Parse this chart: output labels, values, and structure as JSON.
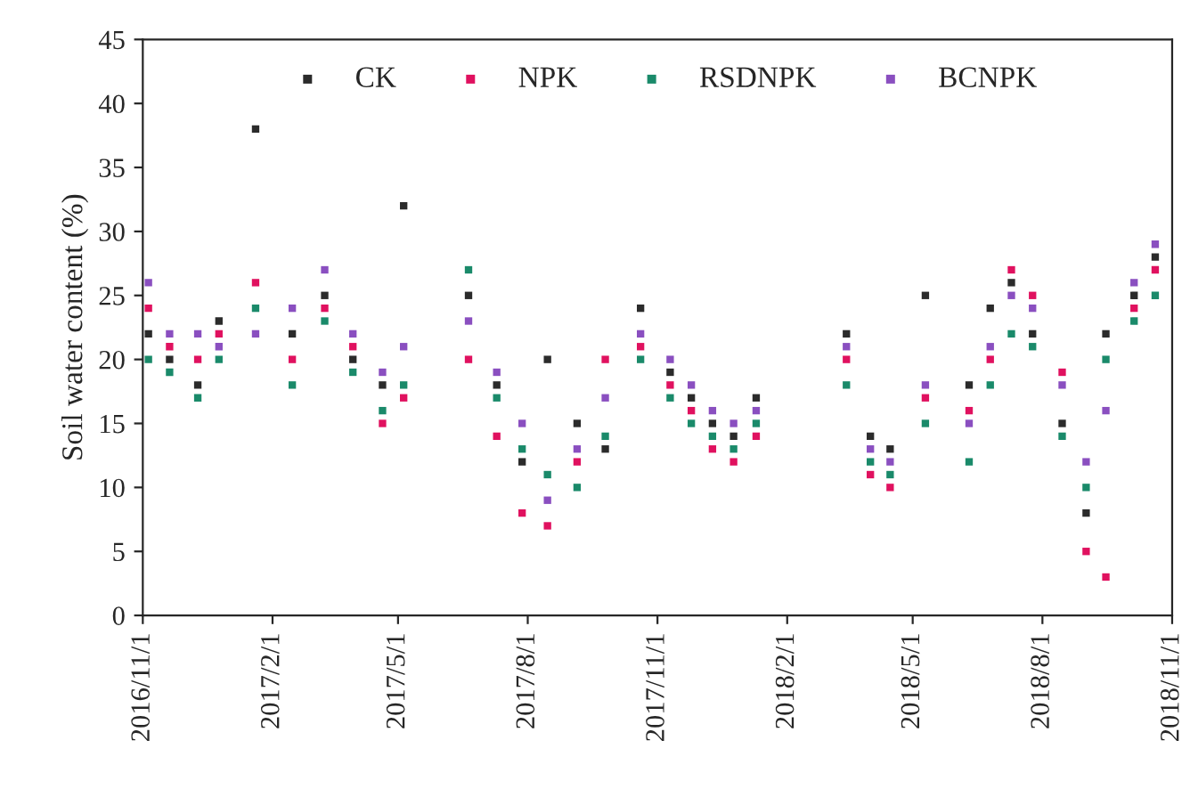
{
  "chart_data": {
    "type": "scatter",
    "ylabel": "Soil water content (%)",
    "x": [
      "2016-11-05",
      "2016-11-20",
      "2016-12-10",
      "2016-12-25",
      "2017-01-20",
      "2017-02-15",
      "2017-03-10",
      "2017-03-30",
      "2017-04-20",
      "2017-05-05",
      "2017-06-20",
      "2017-07-10",
      "2017-07-28",
      "2017-08-15",
      "2017-09-05",
      "2017-09-25",
      "2017-10-20",
      "2017-11-10",
      "2017-11-25",
      "2017-12-10",
      "2017-12-25",
      "2018-01-10",
      "2018-03-15",
      "2018-04-01",
      "2018-04-15",
      "2018-05-10",
      "2018-06-10",
      "2018-06-25",
      "2018-07-10",
      "2018-07-25",
      "2018-08-15",
      "2018-09-01",
      "2018-09-15",
      "2018-10-05",
      "2018-10-20"
    ],
    "series": [
      {
        "name": "CK",
        "color": "#2b2b2b",
        "values": [
          22,
          20,
          18,
          23,
          38,
          22,
          25,
          20,
          18,
          32,
          25,
          18,
          12,
          20,
          15,
          13,
          24,
          19,
          17,
          15,
          14,
          17,
          22,
          14,
          13,
          25,
          18,
          24,
          26,
          22,
          15,
          8,
          22,
          25,
          28
        ]
      },
      {
        "name": "NPK",
        "color": "#e0115f",
        "values": [
          24,
          21,
          20,
          22,
          26,
          20,
          24,
          21,
          15,
          17,
          20,
          14,
          8,
          7,
          12,
          20,
          21,
          18,
          16,
          13,
          12,
          14,
          20,
          11,
          10,
          17,
          16,
          20,
          27,
          25,
          19,
          5,
          3,
          24,
          27
        ]
      },
      {
        "name": "RSDNPK",
        "color": "#1a8a6a",
        "values": [
          20,
          19,
          17,
          20,
          24,
          18,
          23,
          19,
          16,
          18,
          27,
          17,
          13,
          11,
          10,
          14,
          20,
          17,
          15,
          14,
          13,
          15,
          18,
          12,
          11,
          15,
          12,
          18,
          22,
          21,
          14,
          10,
          20,
          23,
          25
        ]
      },
      {
        "name": "BCNPK",
        "color": "#8a4fc0",
        "values": [
          26,
          22,
          22,
          21,
          22,
          24,
          27,
          22,
          19,
          21,
          23,
          19,
          15,
          9,
          13,
          17,
          22,
          20,
          18,
          16,
          15,
          16,
          21,
          13,
          12,
          18,
          15,
          21,
          25,
          24,
          18,
          12,
          16,
          26,
          29
        ]
      }
    ],
    "xlim": [
      "2016-11-01",
      "2018-11-01"
    ],
    "xticks": [
      {
        "value": "2016-11-01",
        "label": "2016/11/1"
      },
      {
        "value": "2017-02-01",
        "label": "2017/2/1"
      },
      {
        "value": "2017-05-01",
        "label": "2017/5/1"
      },
      {
        "value": "2017-08-01",
        "label": "2017/8/1"
      },
      {
        "value": "2017-11-01",
        "label": "2017/11/1"
      },
      {
        "value": "2018-02-01",
        "label": "2018/2/1"
      },
      {
        "value": "2018-05-01",
        "label": "2018/5/1"
      },
      {
        "value": "2018-08-01",
        "label": "2018/8/1"
      },
      {
        "value": "2018-11-01",
        "label": "2018/11/1"
      }
    ],
    "ylim": [
      0,
      45
    ],
    "yticks": [
      0,
      5,
      10,
      15,
      20,
      25,
      30,
      35,
      40,
      45
    ],
    "marker": "square",
    "legend": "top",
    "grid": false
  }
}
